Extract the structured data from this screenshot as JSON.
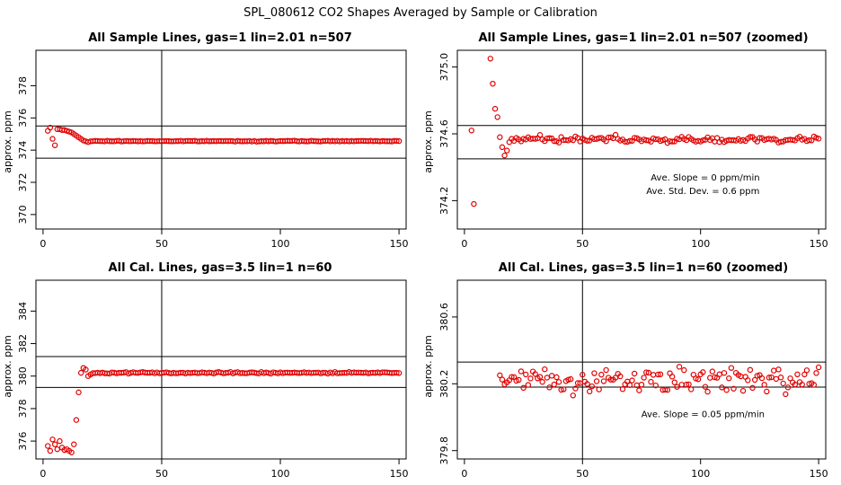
{
  "figure": {
    "title": "SPL_080612  CO2 Shapes Averaged by Sample or Calibration"
  },
  "chart_data": [
    {
      "type": "scatter",
      "title": "All Sample Lines, gas=1 lin=2.01 n=507",
      "xlabel": "",
      "ylabel": "approx. ppm",
      "xlim": [
        -3,
        153
      ],
      "ylim": [
        369.1,
        380.2
      ],
      "xticks": [
        0,
        50,
        100,
        150
      ],
      "yticks": [
        370,
        372,
        374,
        376,
        378
      ],
      "hlines": [
        375.5,
        373.5
      ],
      "vline": 50,
      "marker_color": "#e00000",
      "points": [
        [
          2,
          375.2
        ],
        [
          3,
          375.4
        ],
        [
          4,
          374.7
        ],
        [
          5,
          374.3
        ],
        [
          6,
          375.3
        ],
        [
          7,
          375.3
        ],
        [
          8,
          375.25
        ],
        [
          9,
          375.25
        ],
        [
          10,
          375.2
        ],
        [
          11,
          375.15
        ],
        [
          12,
          375.1
        ],
        [
          13,
          375.0
        ],
        [
          14,
          374.9
        ],
        [
          15,
          374.8
        ],
        [
          16,
          374.7
        ],
        [
          17,
          374.6
        ],
        [
          18,
          374.55
        ],
        [
          19,
          374.5
        ],
        [
          20,
          374.55
        ]
      ],
      "series": [
        {
          "x_start": 21,
          "x_end": 150,
          "y": 374.56,
          "jitter": 0.035
        }
      ],
      "annotations": []
    },
    {
      "type": "scatter",
      "title": "All Sample Lines, gas=1 lin=2.01 n=507 (zoomed)",
      "xlabel": "",
      "ylabel": "approx. ppm",
      "xlim": [
        -3,
        153
      ],
      "ylim": [
        374.03,
        375.1
      ],
      "xticks": [
        0,
        50,
        100,
        150
      ],
      "yticks": [
        374.2,
        374.6,
        375.0
      ],
      "ytick_labels": [
        "374.2",
        "374.6",
        "375.0"
      ],
      "hlines": [
        374.65,
        374.45
      ],
      "vline": 50,
      "marker_color": "#e00000",
      "points": [
        [
          3,
          374.62
        ],
        [
          4,
          374.18
        ],
        [
          11,
          375.05
        ],
        [
          12,
          374.9
        ],
        [
          13,
          374.75
        ],
        [
          14,
          374.7
        ],
        [
          15,
          374.58
        ],
        [
          16,
          374.52
        ],
        [
          17,
          374.47
        ],
        [
          18,
          374.5
        ],
        [
          19,
          374.55
        ],
        [
          20,
          374.57
        ]
      ],
      "series": [
        {
          "x_start": 21,
          "x_end": 150,
          "y": 374.565,
          "jitter": 0.03
        }
      ],
      "annotations": [
        {
          "text": "Ave. Slope =  0  ppm/min",
          "x": 102,
          "y": 374.32
        },
        {
          "text": "Ave. Std. Dev. =  0.6  ppm",
          "x": 101,
          "y": 374.24
        }
      ]
    },
    {
      "type": "scatter",
      "title": "All Cal. Lines, gas=3.5 lin=1 n=60",
      "xlabel": "",
      "ylabel": "approx. ppm",
      "xlim": [
        -3,
        153
      ],
      "ylim": [
        374.9,
        385.9
      ],
      "xticks": [
        0,
        50,
        100,
        150
      ],
      "yticks": [
        376,
        378,
        380,
        382,
        384
      ],
      "hlines": [
        381.2,
        379.3
      ],
      "vline": 50,
      "marker_color": "#e00000",
      "points": [
        [
          2,
          375.7
        ],
        [
          3,
          375.4
        ],
        [
          4,
          376.1
        ],
        [
          5,
          375.8
        ],
        [
          6,
          375.5
        ],
        [
          7,
          376.0
        ],
        [
          8,
          375.6
        ],
        [
          9,
          375.45
        ],
        [
          10,
          375.5
        ],
        [
          11,
          375.4
        ],
        [
          12,
          375.3
        ],
        [
          13,
          375.8
        ],
        [
          14,
          377.3
        ],
        [
          15,
          379.0
        ],
        [
          16,
          380.2
        ],
        [
          17,
          380.5
        ],
        [
          18,
          380.4
        ],
        [
          19,
          380.0
        ],
        [
          20,
          380.1
        ]
      ],
      "series": [
        {
          "x_start": 21,
          "x_end": 150,
          "y": 380.2,
          "jitter": 0.07
        }
      ],
      "annotations": []
    },
    {
      "type": "scatter",
      "title": "All Cal. Lines, gas=3.5 lin=1 n=60 (zoomed)",
      "xlabel": "",
      "ylabel": "approx. ppm",
      "xlim": [
        -3,
        153
      ],
      "ylim": [
        379.75,
        380.82
      ],
      "xticks": [
        0,
        50,
        100,
        150
      ],
      "yticks": [
        379.8,
        380.2,
        380.6
      ],
      "ytick_labels": [
        "379.8",
        "380.2",
        "380.6"
      ],
      "hlines": [
        380.33,
        380.18
      ],
      "vline": 50,
      "marker_color": "#e00000",
      "points": [],
      "series": [
        {
          "x_start": 15,
          "x_end": 150,
          "y": 380.23,
          "jitter": 0.12
        }
      ],
      "annotations": [
        {
          "text": "Ave. Slope =  0.05  ppm/min",
          "x": 101,
          "y": 380.0
        }
      ]
    }
  ]
}
